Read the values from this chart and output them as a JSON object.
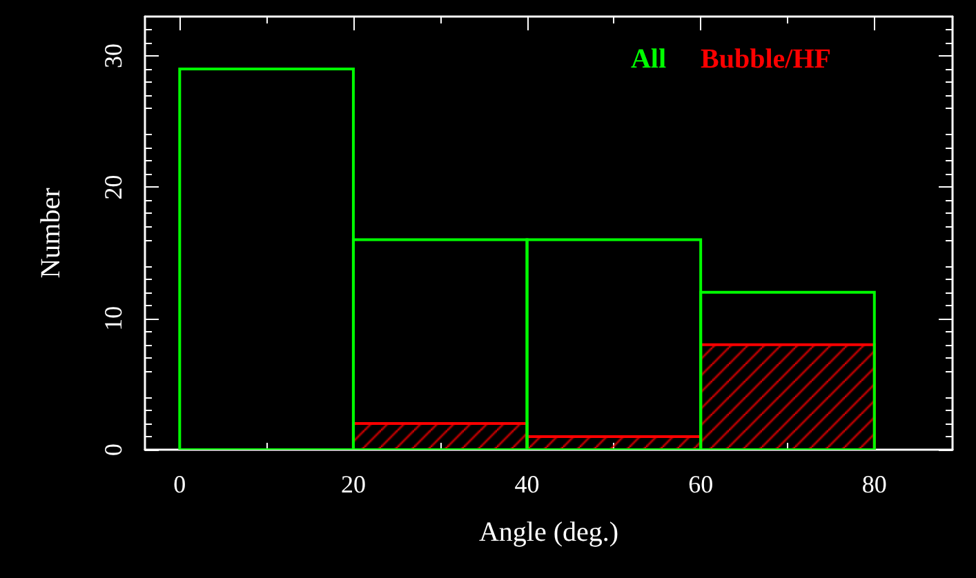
{
  "chart_data": {
    "type": "histogram",
    "xlabel": "Angle (deg.)",
    "ylabel": "Number",
    "bins": [
      0,
      20,
      40,
      60,
      80
    ],
    "series": [
      {
        "name": "All",
        "color": "#00ff00",
        "values": [
          29,
          16,
          16,
          12
        ]
      },
      {
        "name": "Bubble/HF",
        "color": "#ff0000",
        "values": [
          0,
          2,
          1,
          8
        ]
      }
    ],
    "xlim": [
      -4,
      89
    ],
    "xticks": [
      0,
      20,
      40,
      60,
      80
    ],
    "ylim": [
      0,
      33
    ],
    "yticks": [
      0,
      10,
      20,
      30
    ],
    "grid": false,
    "legend": "top right"
  }
}
